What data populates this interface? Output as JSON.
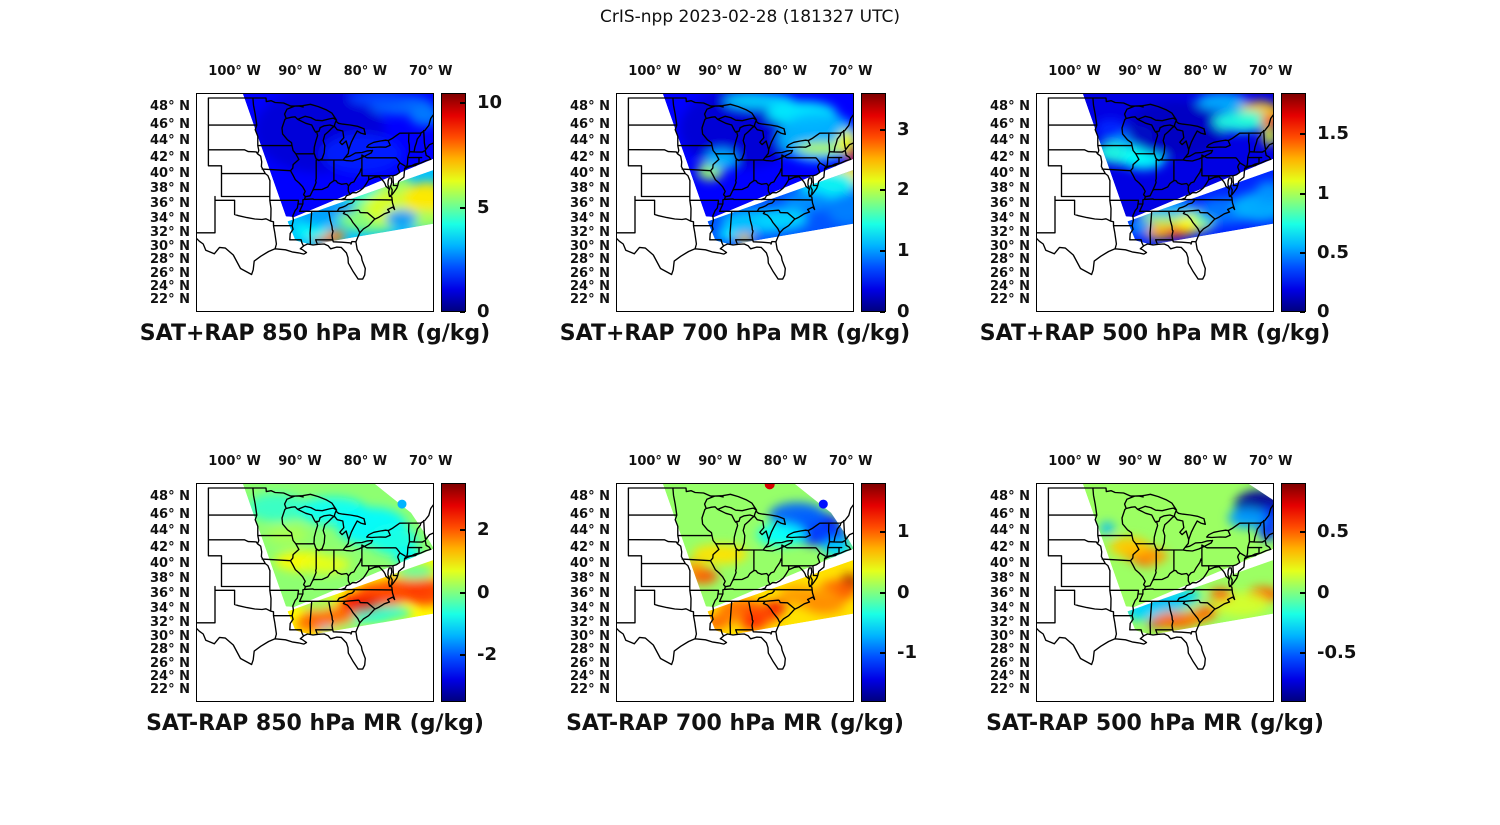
{
  "figure": {
    "title": "CrIS-npp 2023-02-28 (181327 UTC)",
    "background": "#ffffff",
    "line_color": "#000000"
  },
  "axes": {
    "lon": [
      {
        "value": -100,
        "label": "100° W"
      },
      {
        "value": -90,
        "label": "90° W"
      },
      {
        "value": -80,
        "label": "80° W"
      },
      {
        "value": -70,
        "label": "70° W"
      }
    ],
    "lat": [
      {
        "value": 48,
        "label": "48° N"
      },
      {
        "value": 46,
        "label": "46° N"
      },
      {
        "value": 44,
        "label": "44° N"
      },
      {
        "value": 42,
        "label": "42° N"
      },
      {
        "value": 40,
        "label": "40° N"
      },
      {
        "value": 38,
        "label": "38° N"
      },
      {
        "value": 36,
        "label": "36° N"
      },
      {
        "value": 34,
        "label": "34° N"
      },
      {
        "value": 32,
        "label": "32° N"
      },
      {
        "value": 30,
        "label": "30° N"
      },
      {
        "value": 28,
        "label": "28° N"
      },
      {
        "value": 26,
        "label": "26° N"
      },
      {
        "value": 24,
        "label": "24° N"
      },
      {
        "value": 22,
        "label": "22° N"
      }
    ],
    "extent": {
      "lon": [
        -105.9,
        -69.5
      ],
      "lat": [
        20.1,
        49.6
      ]
    }
  },
  "swath_polys": {
    "NT": [
      [
        -99,
        50
      ],
      [
        -69.5,
        50
      ],
      [
        -69.5,
        41.9
      ],
      [
        -90.9,
        34.2
      ],
      [
        -92.15,
        34.3
      ]
    ],
    "NB": [
      [
        -99,
        50
      ],
      [
        -79.5,
        50
      ],
      [
        -73,
        46.2
      ],
      [
        -70.9,
        43.8
      ],
      [
        -69.5,
        41.9
      ],
      [
        -90.9,
        34.2
      ],
      [
        -92.15,
        34.3
      ]
    ],
    "N6": [
      [
        -99,
        50
      ],
      [
        -74.5,
        50
      ],
      [
        -69.5,
        47.6
      ],
      [
        -69.5,
        41.9
      ],
      [
        -90.9,
        34.2
      ],
      [
        -92.15,
        34.3
      ]
    ],
    "ST": [
      [
        -91.9,
        33.6
      ],
      [
        -69.5,
        40.5
      ],
      [
        -69.5,
        33.3
      ],
      [
        -88.3,
        30.3
      ],
      [
        -90.7,
        30.9
      ]
    ]
  },
  "chart_data": [
    {
      "type": "heatmap",
      "title": "SAT+RAP 850 hPa MR (g/kg)",
      "quantity": "mixing ratio",
      "level_hPa": 850,
      "units": "g/kg",
      "colorbar": {
        "min": 0,
        "max": 10.5,
        "colormap": "jet",
        "ticks": [
          {
            "v": 0,
            "label": "0"
          },
          {
            "v": 5,
            "label": "5"
          },
          {
            "v": 10,
            "label": "10"
          }
        ]
      },
      "north_poly": "NT",
      "south_poly": "ST",
      "base_north": 1.3,
      "base_south": 3.3,
      "blobs_north": [
        [
          -87,
          45.3,
          65,
          42,
          0.9
        ],
        [
          -80.5,
          42.5,
          40,
          20,
          1.6
        ],
        [
          -74.5,
          48.2,
          32,
          10,
          2.4
        ],
        [
          -70.8,
          47,
          16,
          10,
          2.6
        ],
        [
          -78,
          49,
          30,
          8,
          2.0
        ]
      ],
      "blobs_south": [
        [
          -83,
          37,
          45,
          14,
          4.4
        ],
        [
          -79,
          34.3,
          35,
          16,
          5.4
        ],
        [
          -74,
          35.6,
          40,
          20,
          6.2
        ],
        [
          -70.6,
          36.8,
          22,
          16,
          6.8
        ],
        [
          -71,
          33.8,
          22,
          10,
          5.6
        ],
        [
          -75.6,
          38.7,
          18,
          9,
          5.6
        ],
        [
          -86.4,
          31.3,
          15,
          7,
          9.3
        ],
        [
          -84.9,
          31.6,
          13,
          6,
          7.8
        ],
        [
          -88.2,
          32.3,
          16,
          9,
          4.0
        ],
        [
          -85.8,
          35.6,
          28,
          9,
          2.8
        ],
        [
          -87.3,
          34,
          18,
          9,
          3.0
        ],
        [
          -74.5,
          34,
          16,
          9,
          2.9
        ]
      ],
      "dots": []
    },
    {
      "type": "heatmap",
      "title": "SAT+RAP 700 hPa MR (g/kg)",
      "quantity": "mixing ratio",
      "level_hPa": 700,
      "units": "g/kg",
      "colorbar": {
        "min": 0,
        "max": 3.6,
        "colormap": "jet",
        "ticks": [
          {
            "v": 0,
            "label": "0"
          },
          {
            "v": 1,
            "label": "1"
          },
          {
            "v": 2,
            "label": "2"
          },
          {
            "v": 3,
            "label": "3"
          }
        ]
      },
      "north_poly": "NT",
      "south_poly": "ST",
      "base_north": 0.45,
      "base_south": 0.75,
      "blobs_north": [
        [
          -87,
          45.5,
          60,
          40,
          0.3
        ],
        [
          -84,
          48.7,
          35,
          8,
          1.2
        ],
        [
          -77.5,
          47.3,
          35,
          12,
          1.3
        ],
        [
          -75,
          44.5,
          40,
          25,
          1.1
        ],
        [
          -74.5,
          43.2,
          25,
          6,
          2.0
        ],
        [
          -70.6,
          43.9,
          10,
          12,
          2.2
        ],
        [
          -69.8,
          42.2,
          6,
          10,
          3.3
        ],
        [
          -91.5,
          40.3,
          13,
          9,
          1.9
        ],
        [
          -89.8,
          41.8,
          16,
          10,
          1.1
        ]
      ],
      "blobs_south": [
        [
          -70.6,
          40,
          15,
          12,
          3.45
        ],
        [
          -71.8,
          39.6,
          24,
          15,
          2.3
        ],
        [
          -73.6,
          38.6,
          28,
          14,
          1.3
        ],
        [
          -84,
          33.6,
          38,
          12,
          1.15
        ],
        [
          -80.5,
          33.9,
          26,
          11,
          1.2
        ],
        [
          -86.2,
          31.1,
          9,
          5,
          2.4
        ],
        [
          -88.8,
          31.8,
          10,
          6,
          1.3
        ],
        [
          -76.5,
          36.3,
          24,
          10,
          0.95
        ],
        [
          -70.5,
          35.3,
          20,
          16,
          0.9
        ]
      ],
      "dots": []
    },
    {
      "type": "heatmap",
      "title": "SAT+RAP 500 hPa MR (g/kg)",
      "quantity": "mixing ratio",
      "level_hPa": 500,
      "units": "g/kg",
      "colorbar": {
        "min": 0,
        "max": 1.85,
        "colormap": "jet",
        "ticks": [
          {
            "v": 0,
            "label": "0"
          },
          {
            "v": 0.5,
            "label": "0.5"
          },
          {
            "v": 1,
            "label": "1"
          },
          {
            "v": 1.5,
            "label": "1.5"
          }
        ]
      },
      "north_poly": "NT",
      "south_poly": "ST",
      "base_north": 0.18,
      "base_south": 0.3,
      "blobs_north": [
        [
          -92.8,
          42.7,
          26,
          12,
          0.75
        ],
        [
          -89.5,
          41.8,
          22,
          10,
          0.7
        ],
        [
          -91,
          44.6,
          20,
          11,
          0.5
        ],
        [
          -94.5,
          45.5,
          15,
          10,
          0.3
        ],
        [
          -84.5,
          45.5,
          50,
          28,
          0.12
        ],
        [
          -71.8,
          47.2,
          22,
          13,
          1.25
        ],
        [
          -74.5,
          46.4,
          28,
          11,
          0.75
        ],
        [
          -77.5,
          48.6,
          25,
          9,
          0.55
        ],
        [
          -70.3,
          46.3,
          8,
          7,
          1.5
        ],
        [
          -70.2,
          44.6,
          7,
          9,
          1.1
        ]
      ],
      "blobs_south": [
        [
          -85.5,
          32.7,
          28,
          10,
          1.6
        ],
        [
          -83.6,
          33.3,
          22,
          9,
          1.5
        ],
        [
          -87.4,
          32.1,
          13,
          7,
          1.3
        ],
        [
          -84.8,
          34.3,
          34,
          10,
          1.0
        ],
        [
          -81.6,
          33.3,
          18,
          8,
          1.15
        ],
        [
          -79.9,
          33.9,
          13,
          8,
          0.85
        ],
        [
          -86,
          35.4,
          30,
          8,
          0.55
        ],
        [
          -76.8,
          35.1,
          28,
          13,
          0.45
        ],
        [
          -71.6,
          35.6,
          28,
          15,
          0.55
        ],
        [
          -70.2,
          37.6,
          14,
          11,
          0.5
        ],
        [
          -90,
          32.9,
          12,
          8,
          0.5
        ]
      ],
      "dots": []
    },
    {
      "type": "heatmap",
      "title": "SAT-RAP 850 hPa MR (g/kg)",
      "quantity": "mixing ratio difference",
      "level_hPa": 850,
      "units": "g/kg",
      "colorbar": {
        "min": -3.5,
        "max": 3.5,
        "colormap": "jet",
        "ticks": [
          {
            "v": -2,
            "label": "-2"
          },
          {
            "v": 0,
            "label": "0"
          },
          {
            "v": 2,
            "label": "2"
          }
        ]
      },
      "north_poly": "NB",
      "south_poly": "ST",
      "base_north": 0.1,
      "base_south": 0.9,
      "blobs_north": [
        [
          -93.5,
          46.8,
          30,
          14,
          -0.5
        ],
        [
          -85,
          46.4,
          35,
          14,
          -0.8
        ],
        [
          -79,
          44.6,
          35,
          19,
          -0.9
        ],
        [
          -75.6,
          42.9,
          24,
          14,
          -0.7
        ],
        [
          -73.6,
          40.9,
          14,
          8,
          -0.9
        ],
        [
          -89.6,
          40.3,
          28,
          10,
          0.9
        ],
        [
          -86,
          39.9,
          24,
          9,
          0.7
        ],
        [
          -92,
          43.6,
          20,
          10,
          0.3
        ]
      ],
      "blobs_south": [
        [
          -79.5,
          34.5,
          30,
          13,
          2.6
        ],
        [
          -78.8,
          34.3,
          9,
          5,
          3.3
        ],
        [
          -80.8,
          34,
          8,
          5,
          3.1
        ],
        [
          -77.5,
          36.2,
          25,
          10,
          2.2
        ],
        [
          -74.5,
          36.5,
          28,
          12,
          2.1
        ],
        [
          -70.8,
          36.3,
          22,
          14,
          2.2
        ],
        [
          -72.4,
          39,
          20,
          8,
          -0.2
        ],
        [
          -79.5,
          32.6,
          25,
          7,
          -0.6
        ],
        [
          -76,
          33.4,
          20,
          8,
          -0.5
        ],
        [
          -82.5,
          31.4,
          16,
          8,
          0.0
        ],
        [
          -85.6,
          32.9,
          26,
          10,
          1.9
        ],
        [
          -88.5,
          31.9,
          14,
          8,
          1.9
        ],
        [
          -86,
          30.9,
          6,
          4,
          -1.2
        ],
        [
          -87.6,
          34.9,
          20,
          8,
          0.2
        ]
      ],
      "dots": [
        [
          -74.4,
          47.2,
          4.5,
          -1.4
        ]
      ]
    },
    {
      "type": "heatmap",
      "title": "SAT-RAP 700 hPa MR (g/kg)",
      "quantity": "mixing ratio difference",
      "level_hPa": 700,
      "units": "g/kg",
      "colorbar": {
        "min": -1.8,
        "max": 1.8,
        "colormap": "jet",
        "ticks": [
          {
            "v": -1,
            "label": "-1"
          },
          {
            "v": 0,
            "label": "0"
          },
          {
            "v": 1,
            "label": "1"
          }
        ]
      },
      "north_poly": "NB",
      "south_poly": "ST",
      "base_north": 0.08,
      "base_south": 0.55,
      "blobs_north": [
        [
          -75.6,
          44.4,
          28,
          17,
          -1.35
        ],
        [
          -78.2,
          45.9,
          28,
          13,
          -1.0
        ],
        [
          -73.2,
          43.3,
          19,
          11,
          -1.1
        ],
        [
          -72,
          41.9,
          14,
          9,
          -0.6
        ],
        [
          -80.6,
          43.6,
          24,
          11,
          -0.45
        ],
        [
          -90,
          41.2,
          28,
          10,
          0.55
        ],
        [
          -92.6,
          38.4,
          15,
          8,
          1.05
        ],
        [
          -94,
          39.6,
          10,
          6,
          0.8
        ]
      ],
      "blobs_south": [
        [
          -86.5,
          33.9,
          24,
          10,
          1.0
        ],
        [
          -83.6,
          33.1,
          19,
          9,
          1.1
        ],
        [
          -81.3,
          34.3,
          11,
          6,
          1.4
        ],
        [
          -84.9,
          31.9,
          13,
          7,
          1.2
        ],
        [
          -88.6,
          32.9,
          13,
          8,
          0.9
        ],
        [
          -70.3,
          37.3,
          10,
          10,
          1.7
        ],
        [
          -72.1,
          36.4,
          19,
          11,
          1.0
        ],
        [
          -75.6,
          35.3,
          24,
          11,
          0.75
        ],
        [
          -78.1,
          35.9,
          19,
          9,
          0.8
        ],
        [
          -90.6,
          32,
          12,
          7,
          1.0
        ],
        [
          -74,
          34.6,
          20,
          10,
          0.85
        ]
      ],
      "dots": [
        [
          -82.4,
          49.4,
          5,
          1.5
        ],
        [
          -74.2,
          47.2,
          4.5,
          -1.3
        ]
      ]
    },
    {
      "type": "heatmap",
      "title": "SAT-RAP 500 hPa MR (g/kg)",
      "quantity": "mixing ratio difference",
      "level_hPa": 500,
      "units": "g/kg",
      "colorbar": {
        "min": -0.9,
        "max": 0.9,
        "colormap": "jet",
        "ticks": [
          {
            "v": -0.5,
            "label": "-0.5"
          },
          {
            "v": 0,
            "label": "0"
          },
          {
            "v": 0.5,
            "label": "0.5"
          }
        ]
      },
      "north_poly": "N6",
      "south_poly": "ST",
      "base_north": 0.05,
      "base_south": 0.05,
      "blobs_north": [
        [
          -71.6,
          47,
          26,
          16,
          -0.85
        ],
        [
          -70.4,
          44.9,
          11,
          17,
          -0.6
        ],
        [
          -73.6,
          45.6,
          19,
          10,
          -0.4
        ],
        [
          -90.2,
          41.4,
          17,
          9,
          0.55
        ],
        [
          -89,
          40.7,
          13,
          8,
          0.5
        ],
        [
          -91.6,
          42.1,
          20,
          10,
          0.32
        ],
        [
          -87.6,
          41,
          12,
          7,
          0.4
        ],
        [
          -95,
          44.4,
          7,
          6,
          -0.35
        ]
      ],
      "blobs_south": [
        [
          -86.6,
          34.9,
          28,
          10,
          -0.35
        ],
        [
          -89.6,
          33.6,
          19,
          9,
          -0.3
        ],
        [
          -83.6,
          35.6,
          19,
          8,
          -0.3
        ],
        [
          -87.6,
          31.95,
          8,
          5,
          0.85
        ],
        [
          -84.6,
          32.3,
          24,
          8,
          0.5
        ],
        [
          -81.1,
          32.9,
          14,
          6,
          0.45
        ],
        [
          -79.6,
          33.6,
          11,
          6,
          0.5
        ],
        [
          -71.1,
          35.9,
          17,
          8,
          0.5
        ],
        [
          -74.6,
          34.6,
          28,
          12,
          0.15
        ],
        [
          -77.6,
          35.9,
          11,
          6,
          0.55
        ]
      ],
      "dots": []
    }
  ]
}
